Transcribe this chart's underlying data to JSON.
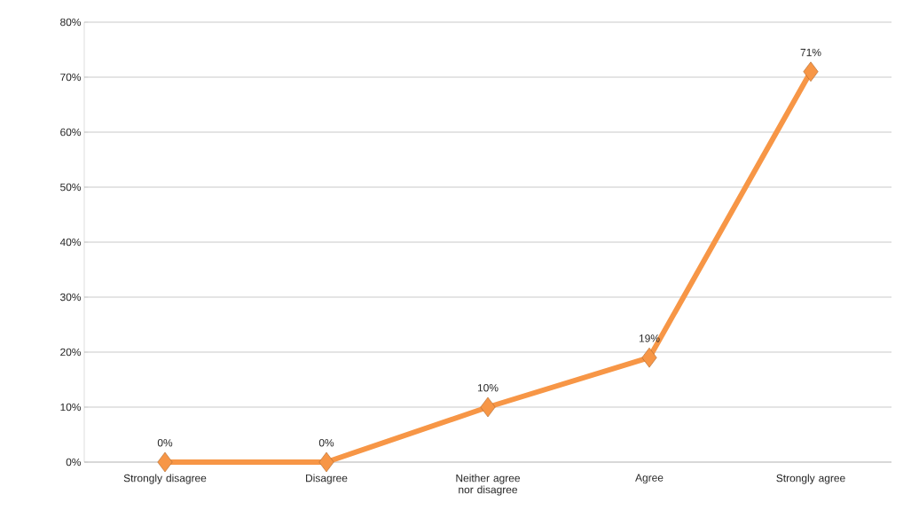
{
  "chart_data": {
    "type": "line",
    "categories": [
      "Strongly disagree",
      "Disagree",
      "Neither agree nor disagree",
      "Agree",
      "Strongly agree"
    ],
    "series": [
      {
        "color": "#f79646",
        "values": [
          0,
          0,
          10,
          19,
          71
        ],
        "value_labels": [
          "0%",
          "0%",
          "10%",
          "19%",
          "71%"
        ]
      }
    ],
    "ylim": [
      0,
      80
    ],
    "yticks": [
      {
        "value": 0,
        "label": "0%"
      },
      {
        "value": 10,
        "label": "10%"
      },
      {
        "value": 20,
        "label": "20%"
      },
      {
        "value": 30,
        "label": "30%"
      },
      {
        "value": 40,
        "label": "40%"
      },
      {
        "value": 50,
        "label": "50%"
      },
      {
        "value": 60,
        "label": "60%"
      },
      {
        "value": 70,
        "label": "70%"
      },
      {
        "value": 80,
        "label": "80%"
      }
    ],
    "grid": "y",
    "marker": "diamond",
    "line_style": "solid"
  }
}
